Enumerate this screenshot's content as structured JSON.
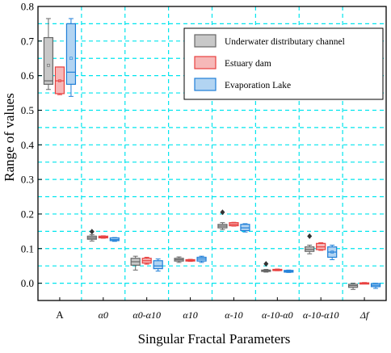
{
  "chart_data": {
    "type": "box",
    "xlabel": "Singular Fractal Parameters",
    "ylabel": "Range of values",
    "ylim": [
      -0.05,
      0.8
    ],
    "yticks": [
      "0.0",
      "0.1",
      "0.2",
      "0.3",
      "0.4",
      "0.5",
      "0.6",
      "0.7",
      "0.8"
    ],
    "ytick_values": [
      0.0,
      0.1,
      0.2,
      0.3,
      0.4,
      0.5,
      0.6,
      0.7,
      0.8
    ],
    "grid": true,
    "legend_position": "top-right",
    "categories": [
      "A",
      "α0",
      "α0-α10",
      "α10",
      "α-10",
      "α-10-α0",
      "α-10-α10",
      "Δf"
    ],
    "series": [
      {
        "name": "Underwater distributary channel",
        "edge_color": "#666666",
        "fill_color": "#c8c8c8",
        "boxes": [
          {
            "whisker_low": 0.56,
            "q1": 0.575,
            "median": 0.585,
            "q3": 0.71,
            "whisker_high": 0.765,
            "mean": 0.63,
            "outliers": []
          },
          {
            "whisker_low": 0.122,
            "q1": 0.127,
            "median": 0.131,
            "q3": 0.136,
            "whisker_high": 0.14,
            "mean": 0.131,
            "outliers": [
              0.149
            ]
          },
          {
            "whisker_low": 0.038,
            "q1": 0.052,
            "median": 0.062,
            "q3": 0.072,
            "whisker_high": 0.078,
            "mean": 0.062,
            "outliers": []
          },
          {
            "whisker_low": 0.06,
            "q1": 0.064,
            "median": 0.068,
            "q3": 0.072,
            "whisker_high": 0.076,
            "mean": 0.068,
            "outliers": []
          },
          {
            "whisker_low": 0.155,
            "q1": 0.16,
            "median": 0.165,
            "q3": 0.17,
            "whisker_high": 0.175,
            "mean": 0.165,
            "outliers": [
              0.205
            ]
          },
          {
            "whisker_low": 0.032,
            "q1": 0.034,
            "median": 0.036,
            "q3": 0.038,
            "whisker_high": 0.04,
            "mean": 0.036,
            "outliers": [
              0.056
            ]
          },
          {
            "whisker_low": 0.085,
            "q1": 0.092,
            "median": 0.098,
            "q3": 0.105,
            "whisker_high": 0.11,
            "mean": 0.098,
            "outliers": [
              0.136
            ]
          },
          {
            "whisker_low": -0.018,
            "q1": -0.012,
            "median": -0.007,
            "q3": -0.003,
            "whisker_high": 0.0,
            "mean": -0.007,
            "outliers": []
          }
        ]
      },
      {
        "name": "Estuary dam",
        "edge_color": "#e8403f",
        "fill_color": "#f6b8b8",
        "boxes": [
          {
            "whisker_low": 0.545,
            "q1": 0.548,
            "median": 0.585,
            "q3": 0.625,
            "whisker_high": 0.625,
            "mean": 0.585,
            "outliers": []
          },
          {
            "whisker_low": 0.13,
            "q1": 0.131,
            "median": 0.133,
            "q3": 0.136,
            "whisker_high": 0.137,
            "mean": 0.133,
            "outliers": []
          },
          {
            "whisker_low": 0.055,
            "q1": 0.058,
            "median": 0.065,
            "q3": 0.072,
            "whisker_high": 0.075,
            "mean": 0.065,
            "outliers": []
          },
          {
            "whisker_low": 0.063,
            "q1": 0.064,
            "median": 0.066,
            "q3": 0.068,
            "whisker_high": 0.069,
            "mean": 0.066,
            "outliers": []
          },
          {
            "whisker_low": 0.165,
            "q1": 0.166,
            "median": 0.17,
            "q3": 0.175,
            "whisker_high": 0.176,
            "mean": 0.17,
            "outliers": []
          },
          {
            "whisker_low": 0.036,
            "q1": 0.037,
            "median": 0.038,
            "q3": 0.04,
            "whisker_high": 0.041,
            "mean": 0.038,
            "outliers": []
          },
          {
            "whisker_low": 0.095,
            "q1": 0.097,
            "median": 0.105,
            "q3": 0.115,
            "whisker_high": 0.117,
            "mean": 0.105,
            "outliers": []
          },
          {
            "whisker_low": -0.002,
            "q1": -0.001,
            "median": 0.0,
            "q3": 0.001,
            "whisker_high": 0.002,
            "mean": 0.0,
            "outliers": []
          }
        ]
      },
      {
        "name": "Evaporation Lake",
        "edge_color": "#1f7fd8",
        "fill_color": "#b2d4f2",
        "boxes": [
          {
            "whisker_low": 0.54,
            "q1": 0.575,
            "median": 0.61,
            "q3": 0.75,
            "whisker_high": 0.765,
            "mean": 0.65,
            "outliers": []
          },
          {
            "whisker_low": 0.121,
            "q1": 0.123,
            "median": 0.126,
            "q3": 0.131,
            "whisker_high": 0.132,
            "mean": 0.126,
            "outliers": []
          },
          {
            "whisker_low": 0.035,
            "q1": 0.042,
            "median": 0.05,
            "q3": 0.065,
            "whisker_high": 0.07,
            "mean": 0.052,
            "outliers": []
          },
          {
            "whisker_low": 0.06,
            "q1": 0.064,
            "median": 0.07,
            "q3": 0.075,
            "whisker_high": 0.078,
            "mean": 0.07,
            "outliers": []
          },
          {
            "whisker_low": 0.148,
            "q1": 0.152,
            "median": 0.16,
            "q3": 0.17,
            "whisker_high": 0.172,
            "mean": 0.16,
            "outliers": []
          },
          {
            "whisker_low": 0.031,
            "q1": 0.032,
            "median": 0.034,
            "q3": 0.037,
            "whisker_high": 0.038,
            "mean": 0.034,
            "outliers": []
          },
          {
            "whisker_low": 0.068,
            "q1": 0.075,
            "median": 0.09,
            "q3": 0.105,
            "whisker_high": 0.11,
            "mean": 0.09,
            "outliers": []
          },
          {
            "whisker_low": -0.015,
            "q1": -0.01,
            "median": -0.006,
            "q3": -0.001,
            "whisker_high": 0.0,
            "mean": -0.006,
            "outliers": []
          }
        ]
      }
    ]
  }
}
